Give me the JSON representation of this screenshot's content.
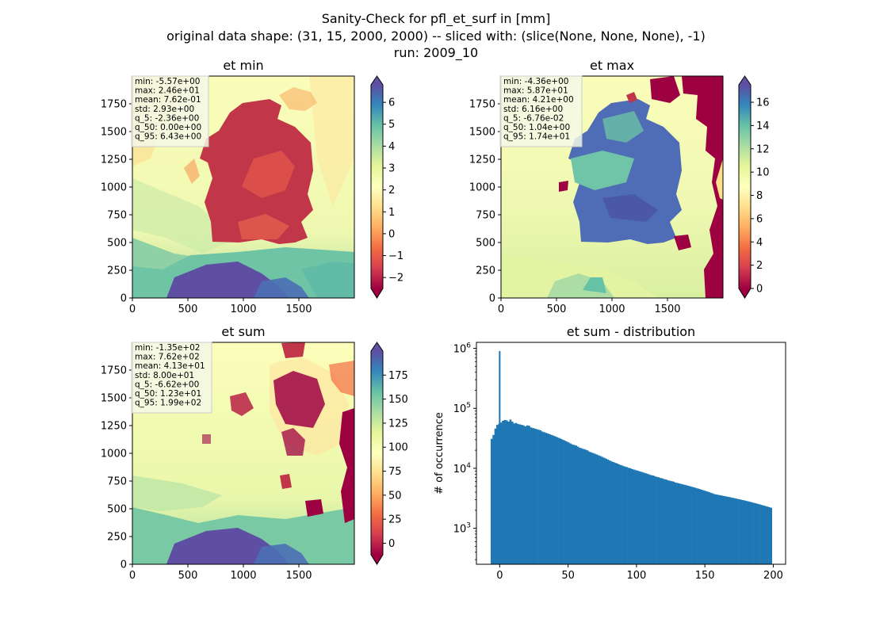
{
  "figure": {
    "suptitle_lines": [
      "Sanity-Check for pfl_et_surf in [mm]",
      "original data shape: (31, 15, 2000, 2000) -- sliced with: (slice(None, None, None), -1)",
      "run: 2009_10"
    ]
  },
  "chart_data": [
    {
      "type": "heatmap",
      "title": "et min",
      "x_ticks": [
        0,
        500,
        1000,
        1500
      ],
      "y_ticks": [
        0,
        250,
        500,
        750,
        1000,
        1250,
        1500,
        1750
      ],
      "xlim": [
        0,
        2000
      ],
      "ylim": [
        0,
        2000
      ],
      "colormap": "Spectral",
      "colorbar": {
        "min": -2.5,
        "max": 6.8,
        "ticks": [
          -2,
          -1,
          0,
          1,
          2,
          3,
          4,
          5,
          6
        ],
        "tick_labels": [
          "−2",
          "−1",
          "0",
          "1",
          "2",
          "3",
          "4",
          "5",
          "6"
        ],
        "extend": "both"
      },
      "stats_box": [
        "min: -5.57e+00",
        "max: 2.46e+01",
        "mean: 7.62e-01",
        "std: 2.93e+00",
        "q_5: -2.36e+00",
        "q_50: 0.00e+00",
        "q_95: 6.43e+00"
      ]
    },
    {
      "type": "heatmap",
      "title": "et max",
      "x_ticks": [
        0,
        500,
        1000,
        1500
      ],
      "y_ticks": [
        0,
        250,
        500,
        750,
        1000,
        1250,
        1500,
        1750
      ],
      "xlim": [
        0,
        2000
      ],
      "ylim": [
        0,
        2000
      ],
      "colormap": "Spectral",
      "colorbar": {
        "min": 0,
        "max": 17.5,
        "ticks": [
          0,
          2,
          4,
          6,
          8,
          10,
          12,
          14,
          16
        ],
        "tick_labels": [
          "0",
          "2",
          "4",
          "6",
          "8",
          "10",
          "12",
          "14",
          "16"
        ],
        "extend": "both"
      },
      "stats_box": [
        "min: -4.36e+00",
        "max: 5.87e+01",
        "mean: 4.21e+00",
        "std: 6.16e+00",
        "q_5: -6.76e-02",
        "q_50: 1.04e+00",
        "q_95: 1.74e+01"
      ]
    },
    {
      "type": "heatmap",
      "title": "et sum",
      "x_ticks": [
        0,
        500,
        1000,
        1500
      ],
      "y_ticks": [
        0,
        250,
        500,
        750,
        1000,
        1250,
        1500,
        1750
      ],
      "xlim": [
        0,
        2000
      ],
      "ylim": [
        0,
        2000
      ],
      "colormap": "Spectral",
      "colorbar": {
        "min": -12,
        "max": 200,
        "ticks": [
          0,
          25,
          50,
          75,
          100,
          125,
          150,
          175
        ],
        "tick_labels": [
          "0",
          "25",
          "50",
          "75",
          "100",
          "125",
          "150",
          "175"
        ],
        "extend": "both"
      },
      "stats_box": [
        "min: -1.35e+02",
        "max: 7.62e+02",
        "mean: 4.13e+01",
        "std: 8.00e+01",
        "q_5: -6.62e+00",
        "q_50: 1.23e+01",
        "q_95: 1.99e+02"
      ]
    },
    {
      "type": "bar",
      "title": "et sum - distribution",
      "ylabel": "# of occurrence",
      "xlim": [
        -17,
        209
      ],
      "ylim_log10": [
        2.4,
        6.1
      ],
      "x_ticks": [
        0,
        50,
        100,
        150,
        200
      ],
      "y_ticks": [
        {
          "exp": 3,
          "mant": "10",
          "sup": "3"
        },
        {
          "exp": 4,
          "mant": "10",
          "sup": "4"
        },
        {
          "exp": 5,
          "mant": "10",
          "sup": "5"
        },
        {
          "exp": 6,
          "mant": "10",
          "sup": "6"
        }
      ],
      "color": "#1f77b4",
      "bin_range": [
        -6.6,
        199
      ],
      "spike": {
        "x": 0,
        "value": 900000
      },
      "values": [
        31000,
        36000,
        46000,
        53000,
        55000,
        58000,
        62000,
        64000,
        63000,
        60000,
        65000,
        60000,
        56000,
        57000,
        55000,
        54000,
        53000,
        52000,
        50000,
        52000,
        51000,
        48000,
        47000,
        46000,
        45000,
        44000,
        43000,
        41000,
        40000,
        39000,
        38000,
        37000,
        36000,
        35000,
        34000,
        33000,
        32000,
        31000,
        30000,
        29000,
        28000,
        27000,
        26000,
        25000,
        24500,
        24000,
        23000,
        22000,
        21500,
        21000,
        20500,
        20000,
        19000,
        18500,
        18000,
        17500,
        17000,
        16500,
        16000,
        15500,
        15000,
        14500,
        14000,
        13500,
        13000,
        12700,
        12300,
        12000,
        11600,
        11300,
        11000,
        10700,
        10500,
        10200,
        10000,
        9700,
        9500,
        9300,
        9100,
        8900,
        8700,
        8500,
        8300,
        8100,
        7900,
        7700,
        7600,
        7400,
        7200,
        7100,
        6900,
        6800,
        6600,
        6500,
        6300,
        6200,
        6100,
        6000,
        5800,
        5700,
        5600,
        5500,
        5400,
        5300,
        5200,
        5100,
        5000,
        4900,
        4800,
        4700,
        4600,
        4500,
        4400,
        4300,
        4200,
        4100,
        4000,
        3900,
        3800,
        3700,
        3650,
        3600,
        3550,
        3500,
        3450,
        3400,
        3350,
        3300,
        3250,
        3200,
        3150,
        3100,
        3050,
        3000,
        2950,
        2900,
        2850,
        2800,
        2750,
        2700,
        2650,
        2600,
        2550,
        2500,
        2450,
        2400,
        2350,
        2300,
        2250,
        2200
      ]
    }
  ]
}
